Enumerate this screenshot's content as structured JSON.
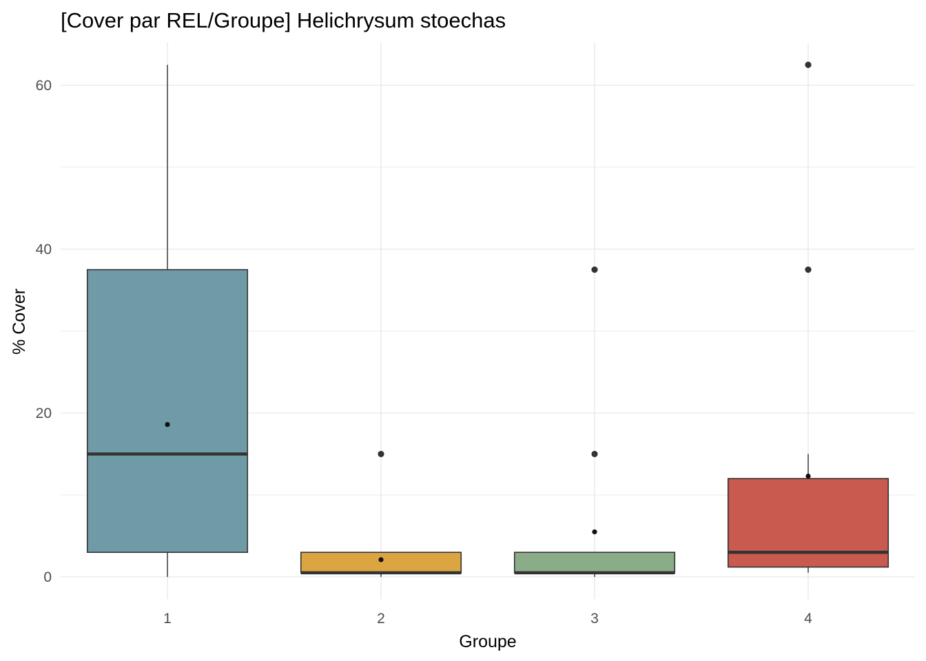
{
  "chart_data": {
    "type": "boxplot",
    "title": "[Cover par REL/Groupe] Helichrysum stoechas",
    "xlabel": "Groupe",
    "ylabel": "% Cover",
    "categories": [
      "1",
      "2",
      "3",
      "4"
    ],
    "ylim": [
      -2.7,
      65.2
    ],
    "yticks": [
      0,
      20,
      40,
      60
    ],
    "grid": true,
    "legend": "none",
    "boxes": [
      {
        "group": "1",
        "fill": "#6f9ba7",
        "min": 0,
        "q1": 3,
        "median": 15,
        "q3": 37.5,
        "max": 62.5,
        "mean": 18.6,
        "outliers": []
      },
      {
        "group": "2",
        "fill": "#dba541",
        "min": 0,
        "q1": 0.5,
        "median": 0.5,
        "q3": 3,
        "max": 3,
        "mean": 2.1,
        "outliers": [
          15
        ]
      },
      {
        "group": "3",
        "fill": "#8bac88",
        "min": 0,
        "q1": 0.5,
        "median": 0.5,
        "q3": 3,
        "max": 3,
        "mean": 5.5,
        "outliers": [
          15,
          37.5
        ]
      },
      {
        "group": "4",
        "fill": "#c85a4f",
        "min": 0.5,
        "q1": 1.2,
        "median": 3,
        "q3": 12,
        "max": 15,
        "mean": 12.3,
        "outliers": [
          37.5,
          62.5
        ]
      }
    ]
  }
}
